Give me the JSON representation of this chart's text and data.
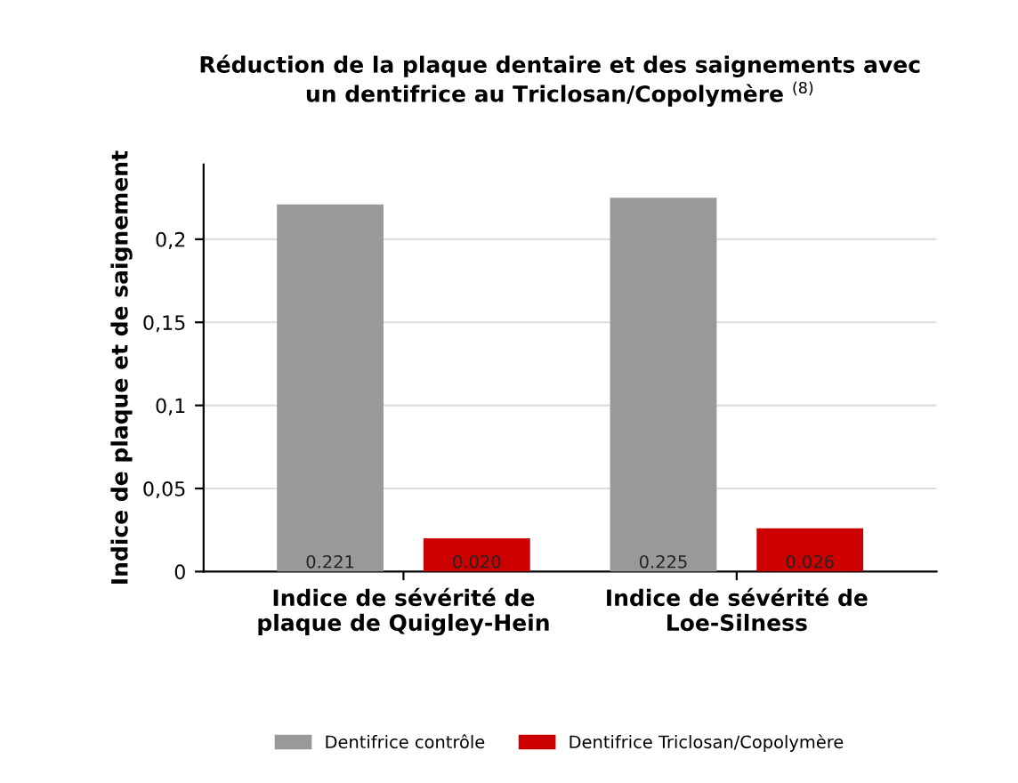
{
  "chart_data": {
    "type": "bar",
    "title": "Réduction de la plaque dentaire et des saignements avec\nun dentifrice au Triclosan/Copolymère $^{(8)}$",
    "ylabel": "Indice de plaque et de saignement",
    "categories": [
      "Indice de sévérité de\nplaque de Quigley-Hein",
      "Indice de sévérité de\nLoe-Silness"
    ],
    "series": [
      {
        "name": "Dentifrice contrôle",
        "color": "#999999",
        "values": [
          0.221,
          0.225
        ],
        "value_labels": [
          "0.221",
          "0.225"
        ]
      },
      {
        "name": "Dentifrice Triclosan/Copolymère",
        "color": "#cc0000",
        "values": [
          0.02,
          0.026
        ],
        "value_labels": [
          "0.020",
          "0.026"
        ]
      }
    ],
    "ylim": [
      0,
      0.245
    ],
    "yticks": [
      0,
      {
        "value": 0.05,
        "label": "0,05"
      },
      {
        "value": 0.1,
        "label": "0,1"
      },
      {
        "value": 0.15,
        "label": "0,15"
      },
      {
        "value": 0.2,
        "label": "0,2"
      }
    ],
    "grid": "y",
    "legend": "bottom"
  }
}
